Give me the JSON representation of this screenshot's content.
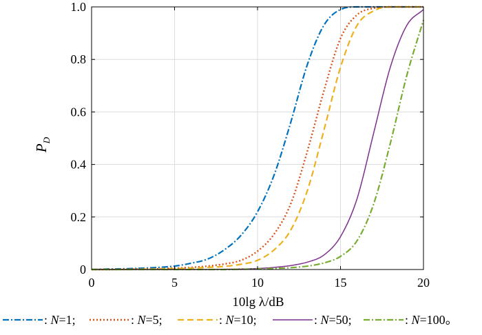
{
  "chart_data": {
    "type": "line",
    "xlabel": "10lg λ/dB",
    "ylabel": "P",
    "ylabel_subscript": "D",
    "xlim": [
      0,
      20
    ],
    "ylim": [
      0,
      1
    ],
    "xticks": [
      0,
      5,
      10,
      15,
      20
    ],
    "yticks": [
      0,
      0.2,
      0.4,
      0.6,
      0.8,
      1.0
    ],
    "xtick_labels": [
      "0",
      "5",
      "10",
      "15",
      "20"
    ],
    "ytick_labels": [
      "0",
      "0.2",
      "0.4",
      "0.6",
      "0.8",
      "1.0"
    ],
    "grid": true,
    "legend_position": "bottom",
    "legend_terminal": "。",
    "x": [
      0,
      1,
      2,
      3,
      4,
      5,
      6,
      7,
      8,
      9,
      10,
      11,
      12,
      13,
      14,
      15,
      16,
      17,
      18,
      19,
      20
    ],
    "series": [
      {
        "name": "N=1",
        "label_italic": "N",
        "label_rest": "=1;",
        "color": "#0072BD",
        "dash": "dashdot",
        "values": [
          0.0,
          0.002,
          0.003,
          0.005,
          0.008,
          0.013,
          0.024,
          0.04,
          0.075,
          0.13,
          0.22,
          0.36,
          0.56,
          0.78,
          0.93,
          0.99,
          1.0,
          1.0,
          1.0,
          1.0,
          1.0
        ]
      },
      {
        "name": "N=5",
        "label_italic": "N",
        "label_rest": "=5;",
        "color": "#D95319",
        "dash": "dotted",
        "values": [
          0.0,
          0.0,
          0.001,
          0.002,
          0.003,
          0.005,
          0.008,
          0.013,
          0.021,
          0.035,
          0.07,
          0.135,
          0.25,
          0.45,
          0.68,
          0.88,
          0.97,
          0.995,
          1.0,
          1.0,
          1.0
        ]
      },
      {
        "name": "N=10",
        "label_italic": "N",
        "label_rest": "=10;",
        "color": "#EDB120",
        "dash": "dashed",
        "values": [
          0.0,
          0.0,
          0.0,
          0.001,
          0.002,
          0.003,
          0.005,
          0.008,
          0.012,
          0.02,
          0.035,
          0.075,
          0.15,
          0.3,
          0.53,
          0.77,
          0.93,
          0.985,
          1.0,
          1.0,
          1.0
        ]
      },
      {
        "name": "N=50",
        "label_italic": "N",
        "label_rest": "=50;",
        "color": "#7E2F8E",
        "dash": "solid",
        "values": [
          0.0,
          0.0,
          0.0,
          0.0,
          0.0,
          0.0,
          0.0,
          0.0,
          0.001,
          0.002,
          0.004,
          0.008,
          0.015,
          0.028,
          0.055,
          0.125,
          0.27,
          0.52,
          0.77,
          0.93,
          0.99
        ]
      },
      {
        "name": "N=100",
        "label_italic": "N",
        "label_rest": "=100",
        "color": "#77AC30",
        "dash": "dashdot",
        "values": [
          0.0,
          0.0,
          0.0,
          0.0,
          0.0,
          0.0,
          0.0,
          0.0,
          0.0,
          0.001,
          0.002,
          0.004,
          0.007,
          0.013,
          0.025,
          0.05,
          0.11,
          0.25,
          0.48,
          0.74,
          0.95
        ]
      }
    ]
  }
}
